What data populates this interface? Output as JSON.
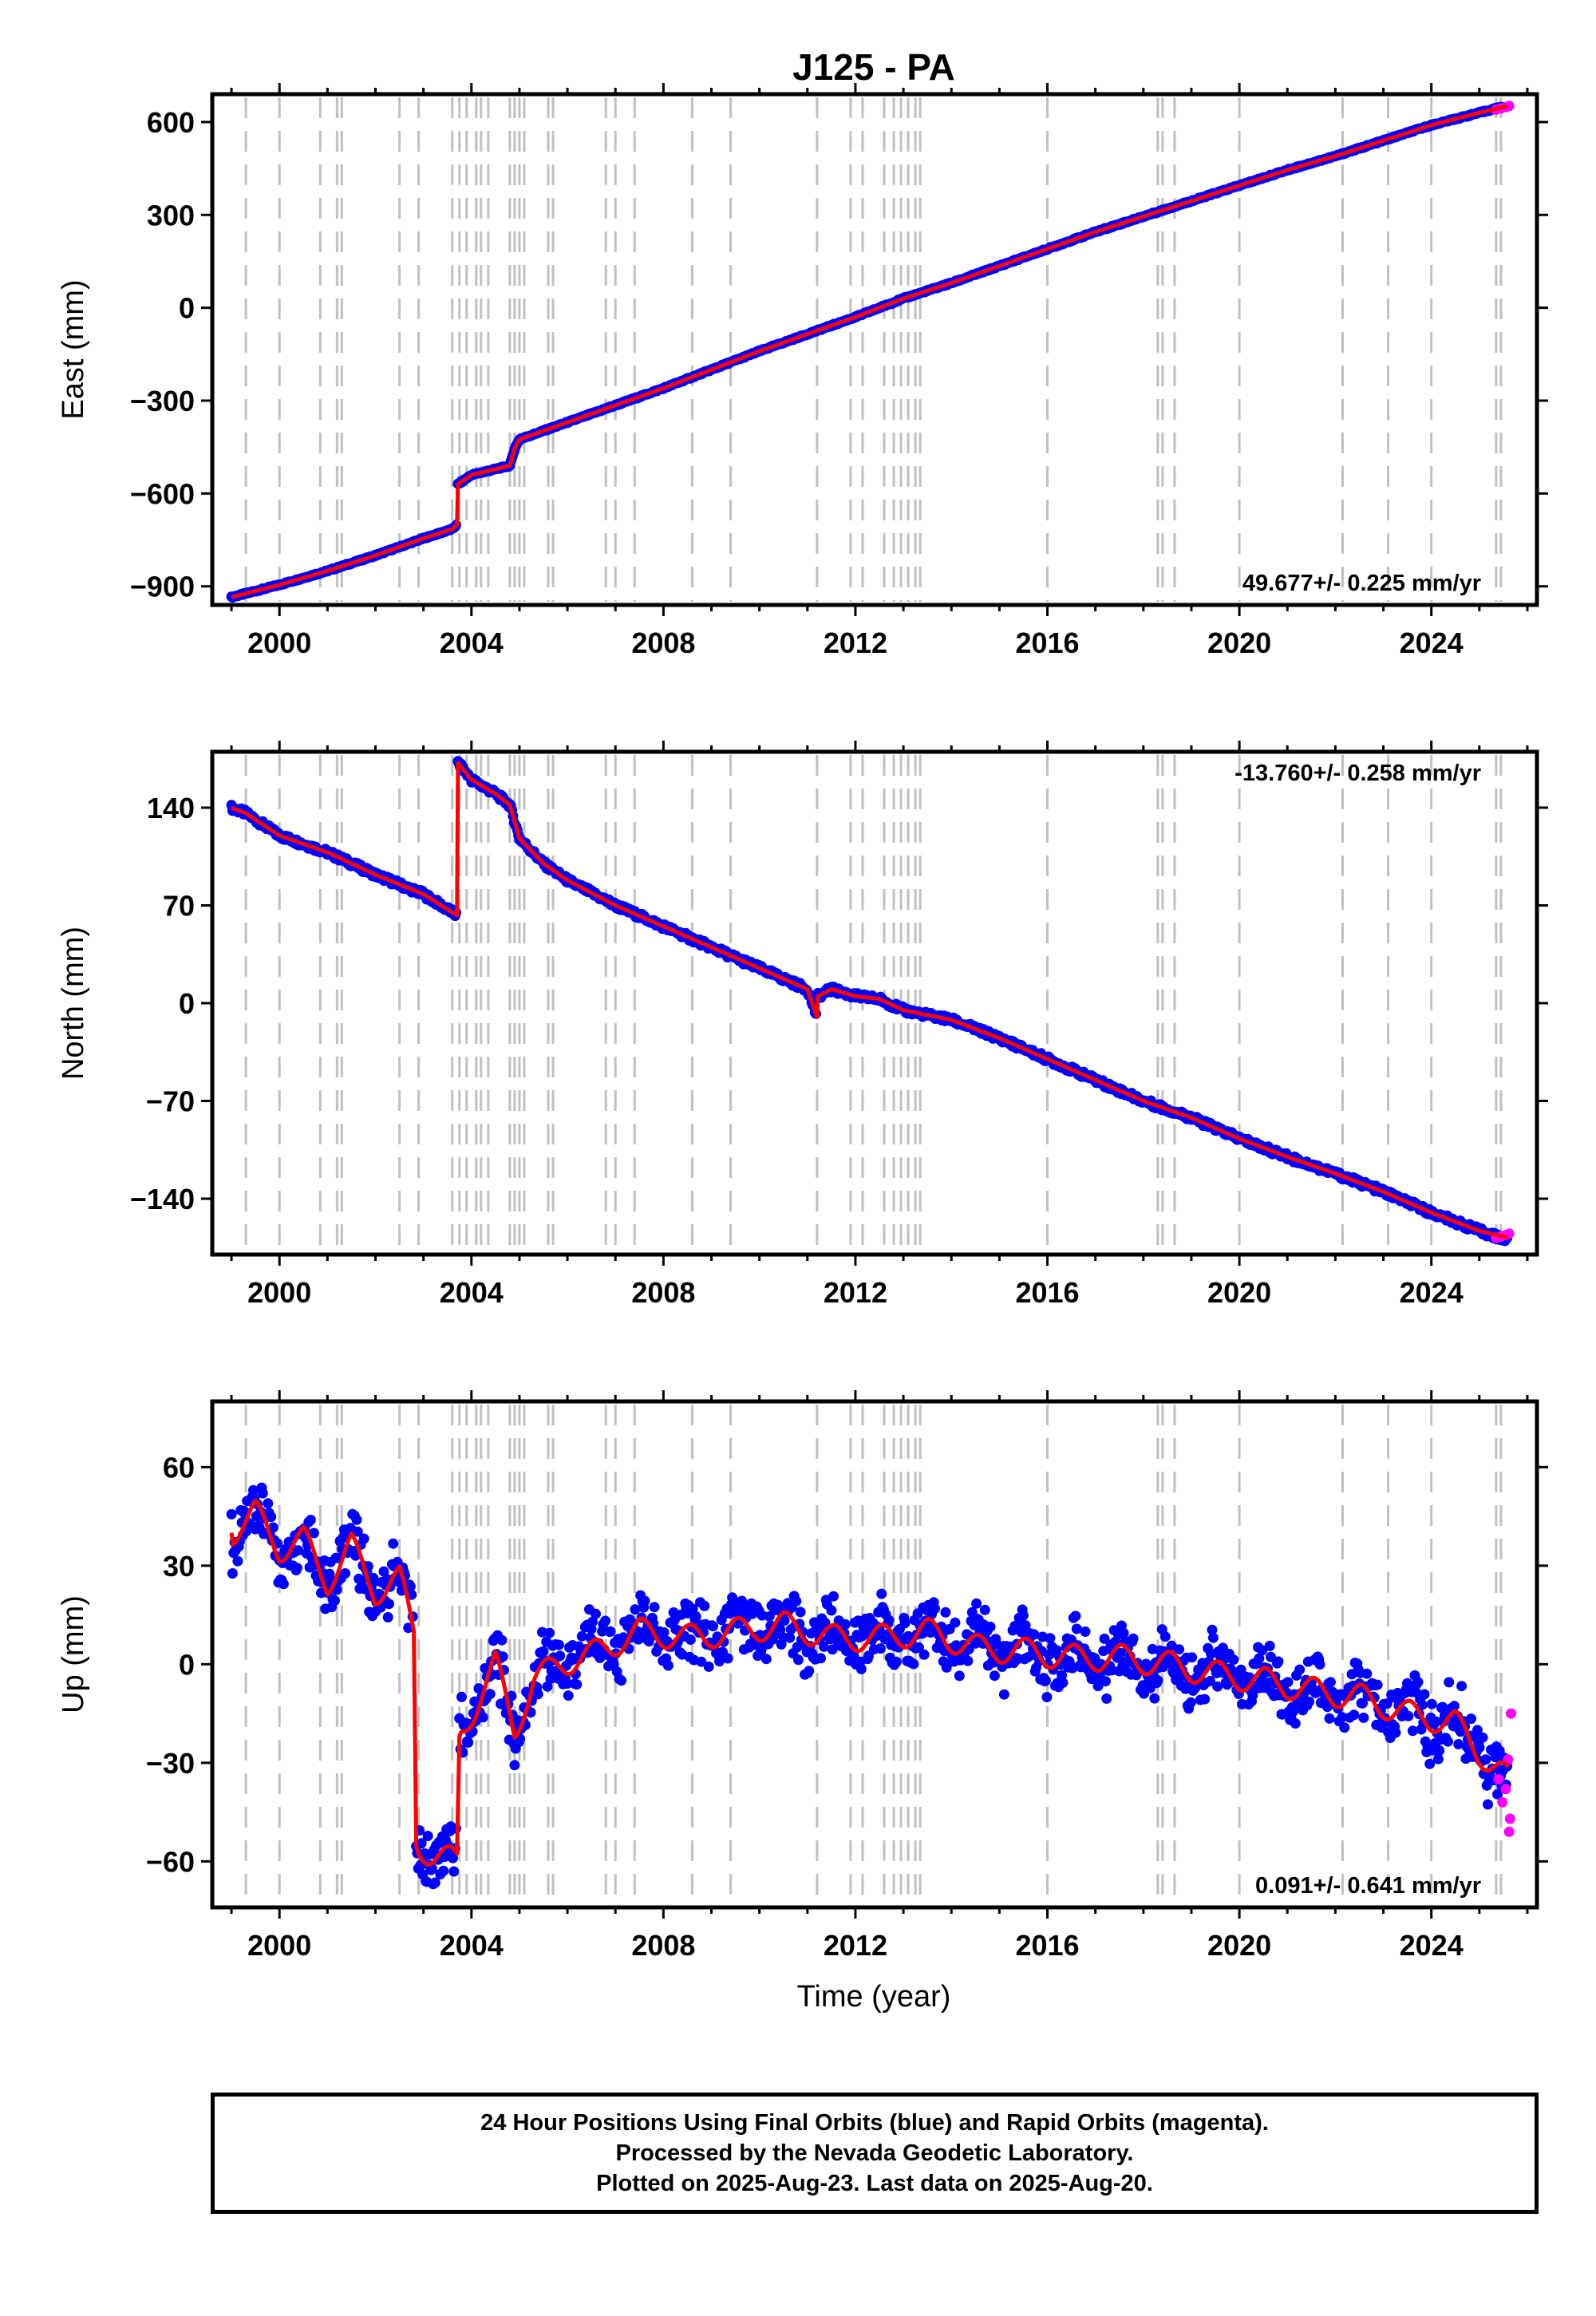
{
  "title": "J125 - PA",
  "xlabel": "Time (year)",
  "footer": {
    "line1": "24 Hour Positions Using Final Orbits (blue) and Rapid Orbits (magenta).",
    "line2": "Processed by the Nevada Geodetic Laboratory.",
    "line3": "Plotted on 2025-Aug-23. Last data on 2025-Aug-20."
  },
  "colors": {
    "final_orbits": "#0000ff",
    "rapid_orbits": "#ff00ff",
    "model_fit": "#ff0000",
    "event_lines": "#c0c0c0"
  },
  "chart_data": [
    {
      "type": "scatter",
      "panel": "east",
      "ylabel": "East (mm)",
      "rate_label": "49.677+/- 0.225 mm/yr",
      "xlim": [
        1998.6,
        2026.2
      ],
      "ylim": [
        -960,
        690
      ],
      "yticks": [
        -900,
        -600,
        -300,
        0,
        300,
        600
      ],
      "xticks": [
        2000,
        2004,
        2008,
        2012,
        2016,
        2020,
        2024
      ],
      "grid": false,
      "series": [
        {
          "name": "Final Orbits",
          "x": [
            1999.0,
            2000.0,
            2001.0,
            2002.0,
            2003.0,
            2003.6,
            2003.7,
            2003.72,
            2004.0,
            2004.8,
            2004.9,
            2005.0,
            2006.0,
            2007.0,
            2008.0,
            2009.0,
            2010.0,
            2011.0,
            2012.0,
            2013.0,
            2014.0,
            2015.0,
            2016.0,
            2017.0,
            2018.0,
            2019.0,
            2020.0,
            2021.0,
            2022.0,
            2023.0,
            2024.0,
            2025.0,
            2025.5
          ],
          "y": [
            -935,
            -895,
            -850,
            -800,
            -745,
            -715,
            -700,
            -570,
            -540,
            -510,
            -455,
            -425,
            -370,
            -315,
            -260,
            -200,
            -140,
            -85,
            -30,
            30,
            80,
            135,
            190,
            245,
            295,
            345,
            395,
            445,
            490,
            540,
            590,
            630,
            650
          ]
        },
        {
          "name": "Rapid Orbits",
          "x": [
            2025.35,
            2025.45,
            2025.55,
            2025.62
          ],
          "y": [
            640,
            644,
            648,
            652
          ]
        },
        {
          "name": "Model",
          "x": [
            1999.0,
            2000.0,
            2001.0,
            2002.0,
            2003.0,
            2003.6,
            2003.7,
            2003.72,
            2004.0,
            2004.8,
            2004.9,
            2005.0,
            2006.0,
            2007.0,
            2008.0,
            2009.0,
            2010.0,
            2011.0,
            2012.0,
            2013.0,
            2014.0,
            2015.0,
            2016.0,
            2017.0,
            2018.0,
            2019.0,
            2020.0,
            2021.0,
            2022.0,
            2023.0,
            2024.0,
            2025.0,
            2025.6
          ],
          "y": [
            -935,
            -895,
            -850,
            -800,
            -745,
            -715,
            -700,
            -570,
            -540,
            -510,
            -455,
            -425,
            -370,
            -315,
            -260,
            -200,
            -140,
            -85,
            -30,
            30,
            80,
            135,
            190,
            245,
            295,
            345,
            395,
            445,
            490,
            540,
            590,
            630,
            652
          ]
        }
      ]
    },
    {
      "type": "scatter",
      "panel": "north",
      "ylabel": "North (mm)",
      "rate_label": "-13.760+/- 0.258 mm/yr",
      "xlim": [
        1998.6,
        2026.2
      ],
      "ylim": [
        -180,
        180
      ],
      "yticks": [
        -140,
        -70,
        0,
        70,
        140
      ],
      "xticks": [
        2000,
        2004,
        2008,
        2012,
        2016,
        2020,
        2024
      ],
      "grid": false,
      "series": [
        {
          "name": "Final Orbits",
          "x": [
            1999.0,
            1999.3,
            2000.0,
            2001.0,
            2002.0,
            2003.0,
            2003.6,
            2003.7,
            2003.72,
            2004.0,
            2004.5,
            2004.8,
            2005.0,
            2005.5,
            2006.0,
            2007.0,
            2008.0,
            2009.0,
            2010.0,
            2011.0,
            2011.2,
            2011.22,
            2011.5,
            2012.0,
            2012.5,
            2013.0,
            2014.0,
            2015.0,
            2016.0,
            2017.0,
            2018.0,
            2019.0,
            2020.0,
            2021.0,
            2022.0,
            2023.0,
            2024.0,
            2025.0,
            2025.6
          ],
          "y": [
            140,
            136,
            120,
            108,
            92,
            78,
            65,
            63,
            172,
            160,
            150,
            142,
            118,
            100,
            88,
            70,
            55,
            40,
            25,
            10,
            -10,
            5,
            10,
            5,
            3,
            -5,
            -12,
            -25,
            -40,
            -55,
            -70,
            -82,
            -97,
            -110,
            -122,
            -135,
            -150,
            -163,
            -170
          ]
        },
        {
          "name": "Rapid Orbits",
          "x": [
            2025.35,
            2025.45,
            2025.55,
            2025.62
          ],
          "y": [
            -168,
            -167,
            -166,
            -165
          ]
        },
        {
          "name": "Model",
          "x": [
            1999.0,
            1999.3,
            2000.0,
            2001.0,
            2002.0,
            2003.0,
            2003.6,
            2003.7,
            2003.72,
            2004.0,
            2004.5,
            2004.8,
            2005.0,
            2005.5,
            2006.0,
            2007.0,
            2008.0,
            2009.0,
            2010.0,
            2011.0,
            2011.2,
            2011.22,
            2011.5,
            2012.0,
            2012.5,
            2013.0,
            2014.0,
            2015.0,
            2016.0,
            2017.0,
            2018.0,
            2019.0,
            2020.0,
            2021.0,
            2022.0,
            2023.0,
            2024.0,
            2025.0,
            2025.6
          ],
          "y": [
            140,
            136,
            120,
            108,
            92,
            78,
            65,
            63,
            172,
            160,
            150,
            142,
            118,
            100,
            88,
            70,
            55,
            40,
            25,
            10,
            -10,
            5,
            10,
            5,
            3,
            -5,
            -12,
            -25,
            -40,
            -55,
            -70,
            -82,
            -97,
            -110,
            -122,
            -135,
            -150,
            -163,
            -168
          ]
        }
      ]
    },
    {
      "type": "scatter",
      "panel": "up",
      "ylabel": "Up (mm)",
      "rate_label": "0.091+/- 0.641 mm/yr",
      "xlim": [
        1998.6,
        2026.2
      ],
      "ylim": [
        -74,
        80
      ],
      "yticks": [
        -60,
        -30,
        0,
        30,
        60
      ],
      "xticks": [
        2000,
        2004,
        2008,
        2012,
        2016,
        2020,
        2024
      ],
      "grid": false,
      "series": [
        {
          "name": "Final Orbits",
          "x": [
            1999.0,
            1999.5,
            2000.0,
            2000.5,
            2001.0,
            2001.5,
            2002.0,
            2002.5,
            2002.8,
            2002.85,
            2003.2,
            2003.7,
            2003.75,
            2004.0,
            2004.5,
            2004.9,
            2005.3,
            2005.8,
            2006.5,
            2007.5,
            2008.5,
            2009.5,
            2010.5,
            2011.5,
            2012.5,
            2013.5,
            2014.5,
            2015.5,
            2016.5,
            2017.5,
            2018.5,
            2019.5,
            2020.5,
            2021.5,
            2022.5,
            2023.5,
            2024.5,
            2025.2,
            2025.6
          ],
          "y": [
            40,
            46,
            35,
            38,
            25,
            36,
            22,
            26,
            10,
            -55,
            -58,
            -60,
            -22,
            -15,
            0,
            -20,
            -5,
            0,
            3,
            10,
            8,
            10,
            12,
            8,
            8,
            10,
            5,
            4,
            2,
            2,
            0,
            -3,
            -5,
            -8,
            -10,
            -15,
            -18,
            -30,
            -38
          ]
        },
        {
          "name": "Rapid Orbits",
          "x": [
            2025.4,
            2025.48,
            2025.55,
            2025.6,
            2025.62,
            2025.64,
            2025.66
          ],
          "y": [
            -35,
            -42,
            -38,
            -29,
            -51,
            -47,
            -15
          ]
        },
        {
          "name": "Model",
          "x": [
            1999.0,
            1999.5,
            2000.0,
            2000.5,
            2001.0,
            2001.5,
            2002.0,
            2002.5,
            2002.8,
            2002.85,
            2003.2,
            2003.7,
            2003.75,
            2004.0,
            2004.5,
            2004.9,
            2005.3,
            2005.8,
            2006.5,
            2007.5,
            2008.5,
            2009.5,
            2010.5,
            2011.5,
            2012.5,
            2013.5,
            2014.5,
            2015.5,
            2016.5,
            2017.5,
            2018.5,
            2019.5,
            2020.5,
            2021.5,
            2022.5,
            2023.5,
            2024.5,
            2025.2,
            2025.6
          ],
          "y": [
            40,
            46,
            35,
            38,
            25,
            36,
            22,
            26,
            10,
            -55,
            -58,
            -60,
            -22,
            -15,
            0,
            -20,
            -5,
            0,
            3,
            10,
            8,
            10,
            12,
            8,
            8,
            10,
            5,
            4,
            2,
            2,
            0,
            -3,
            -5,
            -8,
            -10,
            -15,
            -18,
            -30,
            -35
          ]
        }
      ]
    }
  ],
  "event_lines": [
    1999.3,
    2000.0,
    2000.85,
    2001.2,
    2001.3,
    2002.5,
    2002.9,
    2003.6,
    2003.75,
    2003.9,
    2004.1,
    2004.2,
    2004.35,
    2004.8,
    2004.9,
    2005.0,
    2005.1,
    2005.6,
    2005.7,
    2006.8,
    2007.0,
    2007.4,
    2008.6,
    2009.4,
    2011.2,
    2011.9,
    2012.15,
    2012.6,
    2012.8,
    2012.95,
    2013.1,
    2013.25,
    2013.35,
    2016.0,
    2018.3,
    2018.4,
    2018.65,
    2020.0,
    2022.15,
    2023.1,
    2024.0,
    2025.35,
    2025.45
  ]
}
